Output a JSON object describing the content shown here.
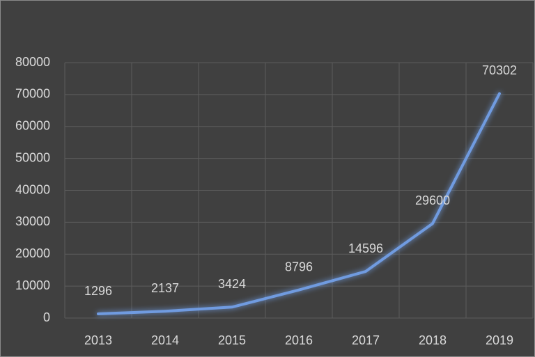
{
  "chart_data": {
    "type": "line",
    "categories": [
      "2013",
      "2014",
      "2015",
      "2016",
      "2017",
      "2018",
      "2019"
    ],
    "values": [
      1296,
      2137,
      3424,
      8796,
      14596,
      29600,
      70302
    ],
    "color": "#6f9be0",
    "ylim": [
      0,
      80000
    ],
    "yticks": [
      0,
      10000,
      20000,
      30000,
      40000,
      50000,
      60000,
      70000,
      80000
    ],
    "grid": true,
    "data_labels": true
  }
}
